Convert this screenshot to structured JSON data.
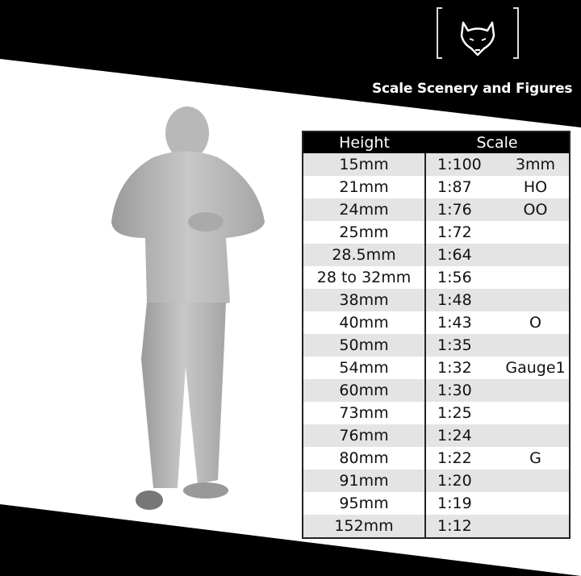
{
  "brand": {
    "name": "Scale Scenery and Figures",
    "logo": "wolf-head-icon"
  },
  "table": {
    "headers": {
      "height": "Height",
      "scale": "Scale"
    },
    "rows": [
      {
        "height": "15mm",
        "scale": "1:100",
        "gauge": "3mm"
      },
      {
        "height": "21mm",
        "scale": "1:87",
        "gauge": "HO"
      },
      {
        "height": "24mm",
        "scale": "1:76",
        "gauge": "OO"
      },
      {
        "height": "25mm",
        "scale": "1:72",
        "gauge": ""
      },
      {
        "height": "28.5mm",
        "scale": "1:64",
        "gauge": ""
      },
      {
        "height": "28 to 32mm",
        "scale": "1:56",
        "gauge": ""
      },
      {
        "height": "38mm",
        "scale": "1:48",
        "gauge": ""
      },
      {
        "height": "40mm",
        "scale": "1:43",
        "gauge": "O"
      },
      {
        "height": "50mm",
        "scale": "1:35",
        "gauge": ""
      },
      {
        "height": "54mm",
        "scale": "1:32",
        "gauge": "Gauge1"
      },
      {
        "height": "60mm",
        "scale": "1:30",
        "gauge": ""
      },
      {
        "height": "73mm",
        "scale": "1:25",
        "gauge": ""
      },
      {
        "height": "76mm",
        "scale": "1:24",
        "gauge": ""
      },
      {
        "height": "80mm",
        "scale": "1:22",
        "gauge": "G"
      },
      {
        "height": "91mm",
        "scale": "1:20",
        "gauge": ""
      },
      {
        "height": "95mm",
        "scale": "1:19",
        "gauge": ""
      },
      {
        "height": "152mm",
        "scale": "1:12",
        "gauge": ""
      }
    ]
  }
}
